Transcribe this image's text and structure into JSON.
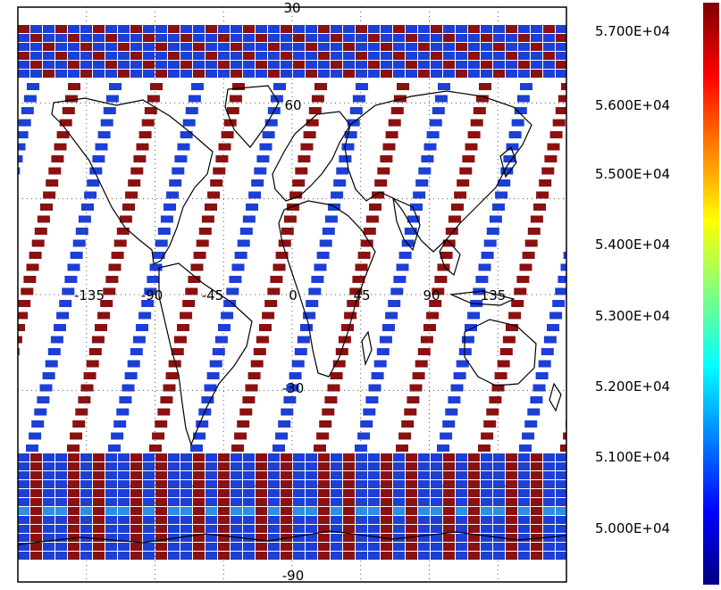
{
  "map": {
    "lat_labels": [
      "30",
      "60",
      "-30",
      "-90"
    ],
    "lon_labels": [
      "-135",
      "-90",
      "-45",
      "0",
      "45",
      "90",
      "135"
    ],
    "lat_grid": [
      90,
      60,
      30,
      0,
      -30,
      -60,
      -90
    ],
    "lon_grid": [
      -180,
      -135,
      -90,
      -45,
      0,
      45,
      90,
      135,
      180
    ],
    "swath_colors": {
      "high": "#8b1010",
      "low": "#1c3fd6",
      "mid": "#2b8fe6"
    },
    "coastline_color": "#000000",
    "grid_color": "#555555"
  },
  "colorbar": {
    "ticks": [
      "5.700E+04",
      "5.600E+04",
      "5.500E+04",
      "5.400E+04",
      "5.300E+04",
      "5.200E+04",
      "5.100E+04",
      "5.000E+04"
    ],
    "tick_values": [
      57000,
      56000,
      55000,
      54000,
      53000,
      52000,
      51000,
      50000
    ],
    "range": [
      49500,
      57500
    ],
    "colors": [
      "#000080",
      "#0000ff",
      "#0080ff",
      "#00ffff",
      "#80ff80",
      "#ffff00",
      "#ff8000",
      "#ff0000",
      "#800000"
    ]
  }
}
